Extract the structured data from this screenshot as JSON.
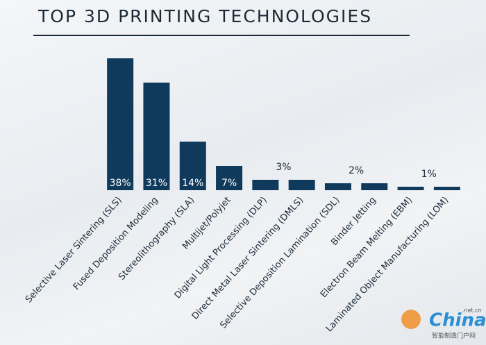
{
  "chart_data": {
    "type": "bar",
    "title": "TOP 3D PRINTING TECHNOLOGIES",
    "categories": [
      "Selective Laser Sintering (SLS)",
      "Fused Deposition Modeling",
      "Stereolithography (SLA)",
      "Multijet/Polyjet",
      "Digital Light Processing (DLP)",
      "Direct Metal Laser Sintering (DMLS)",
      "Selective Deposition Lamination (SDL)",
      "Binder Jetting",
      "Electron Beam Melting (EBM)",
      "Laminated Object Manufacturing (LOM)"
    ],
    "values": [
      38,
      31,
      14,
      7,
      3,
      3,
      2,
      2,
      1,
      1
    ],
    "value_labels": [
      "38%",
      "31%",
      "14%",
      "7%",
      "3%",
      null,
      "2%",
      null,
      "1%",
      null
    ],
    "color": "#0f3a5c",
    "ylim": [
      0,
      40
    ]
  },
  "watermark": {
    "brand": "China",
    "domain": ".net.cn",
    "tagline": "智能制造门户网"
  }
}
